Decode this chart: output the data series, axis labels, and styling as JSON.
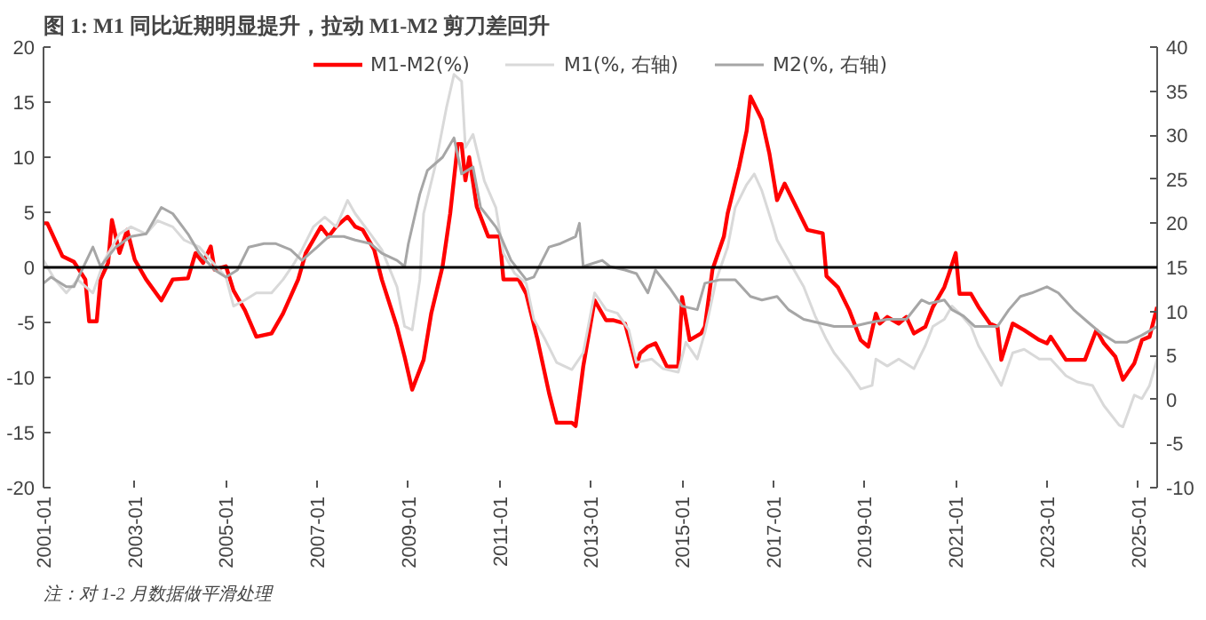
{
  "chart_data": {
    "type": "line",
    "title": "图 1: M1 同比近期明显提升，拉动 M1-M2 剪刀差回升",
    "annotations": [
      "注：对 1-2 月数据做平滑处理"
    ],
    "xlim": [
      "2001-01",
      "2025-06"
    ],
    "xticks": [
      "2001-01",
      "2003-01",
      "2005-01",
      "2007-01",
      "2009-01",
      "2011-01",
      "2013-01",
      "2015-01",
      "2017-01",
      "2019-01",
      "2021-01",
      "2023-01",
      "2025-01"
    ],
    "ylim": [
      -20,
      20
    ],
    "yticks": [
      -20,
      -15,
      -10,
      -5,
      0,
      5,
      10,
      15,
      20
    ],
    "y2lim": [
      -10,
      40
    ],
    "y2ticks": [
      -10,
      -5,
      0,
      5,
      10,
      15,
      20,
      25,
      30,
      35,
      40
    ],
    "ref_lines": [
      {
        "axis": "y",
        "value": 0,
        "color": "#000000"
      }
    ],
    "grid": false,
    "legend": "top",
    "marker": "none",
    "line_style": "solid",
    "series": [
      {
        "name": "M1-M2(%)",
        "color": "#ff0000",
        "x": [
          "2001-01",
          "2001-02",
          "2001-06",
          "2001-09",
          "2001-12",
          "2002-01",
          "2002-03",
          "2002-04",
          "2002-06",
          "2002-07",
          "2002-09",
          "2002-11",
          "2003-01",
          "2003-04",
          "2003-08",
          "2003-11",
          "2004-03",
          "2004-05",
          "2004-07",
          "2004-09",
          "2004-10",
          "2005-01",
          "2005-03",
          "2005-06",
          "2005-09",
          "2006-01",
          "2006-04",
          "2006-08",
          "2006-10",
          "2007-02",
          "2007-04",
          "2007-06",
          "2007-09",
          "2007-11",
          "2008-01",
          "2008-04",
          "2008-06",
          "2008-10",
          "2008-12",
          "2009-02",
          "2009-05",
          "2009-07",
          "2009-10",
          "2009-12",
          "2010-02",
          "2010-03",
          "2010-04",
          "2010-05",
          "2010-07",
          "2010-10",
          "2011-01",
          "2011-02",
          "2011-06",
          "2011-08",
          "2011-11",
          "2012-02",
          "2012-04",
          "2012-08",
          "2012-09",
          "2012-11",
          "2013-02",
          "2013-05",
          "2013-07",
          "2013-10",
          "2014-01",
          "2014-02",
          "2014-04",
          "2014-06",
          "2014-09",
          "2014-12",
          "2015-01",
          "2015-03",
          "2015-06",
          "2015-07",
          "2015-09",
          "2015-12",
          "2016-01",
          "2016-04",
          "2016-06",
          "2016-07",
          "2016-10",
          "2016-12",
          "2017-02",
          "2017-04",
          "2017-07",
          "2017-10",
          "2018-02",
          "2018-03",
          "2018-06",
          "2018-09",
          "2018-12",
          "2019-02",
          "2019-04",
          "2019-05",
          "2019-07",
          "2019-10",
          "2019-12",
          "2020-02",
          "2020-05",
          "2020-07",
          "2020-10",
          "2020-11",
          "2021-01",
          "2021-02",
          "2021-05",
          "2021-07",
          "2021-10",
          "2021-12",
          "2022-01",
          "2022-04",
          "2022-07",
          "2022-11",
          "2023-01",
          "2023-02",
          "2023-06",
          "2023-11",
          "2024-02",
          "2024-04",
          "2024-07",
          "2024-09",
          "2024-12",
          "2025-02",
          "2025-04",
          "2025-06"
        ],
        "values": [
          4.0,
          4.0,
          1.0,
          0.5,
          -1.1,
          -4.9,
          -4.9,
          -1.1,
          0.4,
          4.3,
          1.3,
          3.4,
          0.7,
          -1.1,
          -3.0,
          -1.1,
          -1.0,
          1.3,
          0.4,
          1.9,
          -0.2,
          0.1,
          -2.1,
          -3.9,
          -6.3,
          -6.0,
          -4.2,
          -1.1,
          1.3,
          3.7,
          2.8,
          3.7,
          4.6,
          3.7,
          3.4,
          1.6,
          -1.1,
          -5.4,
          -8.1,
          -11.1,
          -8.4,
          -4.2,
          0.1,
          4.9,
          11.2,
          11.2,
          7.9,
          10.0,
          5.5,
          2.8,
          2.8,
          -1.1,
          -1.1,
          -2.4,
          -6.6,
          -11.4,
          -14.1,
          -14.1,
          -14.4,
          -9.0,
          -3.0,
          -4.8,
          -4.8,
          -5.1,
          -9.0,
          -7.8,
          -7.2,
          -6.9,
          -9.0,
          -9.0,
          -2.7,
          -6.6,
          -6.0,
          -5.4,
          -0.2,
          2.8,
          4.9,
          9.1,
          12.4,
          15.5,
          13.4,
          10.3,
          6.1,
          7.6,
          5.5,
          3.4,
          3.1,
          -0.8,
          -1.8,
          -3.9,
          -6.6,
          -7.2,
          -4.2,
          -5.1,
          -4.5,
          -5.1,
          -4.5,
          -6.0,
          -5.4,
          -3.6,
          -1.8,
          -0.8,
          1.3,
          -2.4,
          -2.4,
          -3.6,
          -5.1,
          -5.4,
          -8.4,
          -5.1,
          -5.7,
          -6.6,
          -6.9,
          -6.3,
          -8.4,
          -8.4,
          -5.7,
          -6.9,
          -8.1,
          -10.2,
          -8.7,
          -6.6,
          -6.3,
          -3.6
        ]
      },
      {
        "name": "M1(%, 右轴)",
        "color": "#d9d9d9",
        "axis": "y2",
        "x": [
          "2001-01",
          "2001-04",
          "2001-07",
          "2001-10",
          "2002-02",
          "2002-05",
          "2002-09",
          "2002-12",
          "2003-04",
          "2003-07",
          "2003-11",
          "2004-02",
          "2004-06",
          "2004-09",
          "2005-01",
          "2005-03",
          "2005-06",
          "2005-09",
          "2006-01",
          "2006-04",
          "2006-07",
          "2006-09",
          "2006-12",
          "2007-03",
          "2007-06",
          "2007-09",
          "2007-11",
          "2008-03",
          "2008-06",
          "2008-10",
          "2008-12",
          "2009-02",
          "2009-04",
          "2009-05",
          "2009-08",
          "2009-11",
          "2010-01",
          "2010-03",
          "2010-04",
          "2010-06",
          "2010-09",
          "2010-12",
          "2011-02",
          "2011-05",
          "2011-08",
          "2011-10",
          "2012-01",
          "2012-04",
          "2012-08",
          "2012-11",
          "2013-02",
          "2013-05",
          "2013-08",
          "2013-11",
          "2014-01",
          "2014-05",
          "2014-08",
          "2014-12",
          "2015-02",
          "2015-05",
          "2015-07",
          "2015-10",
          "2016-01",
          "2016-03",
          "2016-06",
          "2016-08",
          "2016-10",
          "2017-01",
          "2017-02",
          "2017-05",
          "2017-09",
          "2017-12",
          "2018-03",
          "2018-05",
          "2018-09",
          "2018-12",
          "2019-03",
          "2019-04",
          "2019-07",
          "2019-10",
          "2020-02",
          "2020-05",
          "2020-07",
          "2020-10",
          "2020-12",
          "2021-02",
          "2021-05",
          "2021-07",
          "2021-11",
          "2022-01",
          "2022-04",
          "2022-07",
          "2022-11",
          "2023-02",
          "2023-06",
          "2023-09",
          "2024-01",
          "2024-04",
          "2024-08",
          "2024-09",
          "2024-12",
          "2025-02",
          "2025-04",
          "2025-06"
        ],
        "values": [
          15.8,
          13.6,
          12.1,
          13.6,
          12.1,
          15.8,
          18.8,
          19.6,
          18.8,
          20.3,
          19.6,
          18.1,
          17.3,
          15.8,
          13.9,
          10.6,
          11.3,
          12.1,
          12.1,
          13.6,
          15.5,
          17.0,
          19.6,
          20.7,
          19.6,
          22.6,
          21.1,
          18.8,
          17.0,
          12.8,
          8.3,
          7.9,
          13.6,
          21.1,
          26.4,
          33.1,
          36.9,
          36.1,
          28.6,
          30.1,
          24.8,
          21.8,
          16.6,
          14.3,
          13.2,
          9.1,
          6.8,
          4.2,
          3.4,
          5.3,
          12.1,
          10.2,
          9.8,
          7.9,
          4.2,
          4.6,
          3.5,
          3.1,
          6.5,
          4.6,
          7.6,
          13.6,
          17.3,
          21.8,
          24.4,
          25.6,
          23.7,
          19.6,
          18.1,
          15.8,
          12.8,
          9.5,
          6.8,
          5.3,
          3.1,
          1.2,
          1.6,
          4.6,
          3.8,
          4.6,
          3.5,
          6.1,
          8.3,
          9.1,
          10.6,
          9.8,
          8.3,
          6.1,
          3.1,
          1.6,
          5.3,
          5.7,
          4.6,
          4.6,
          2.7,
          2.0,
          1.6,
          -0.7,
          -2.9,
          -3.1,
          0.5,
          0.1,
          1.6,
          4.6
        ]
      },
      {
        "name": "M2(%, 右轴)",
        "color": "#a6a6a6",
        "axis": "y2",
        "x": [
          "2001-01",
          "2001-03",
          "2001-07",
          "2001-09",
          "2002-02",
          "2002-04",
          "2002-08",
          "2002-12",
          "2003-04",
          "2003-08",
          "2003-11",
          "2004-03",
          "2004-06",
          "2004-10",
          "2005-01",
          "2005-04",
          "2005-07",
          "2005-11",
          "2006-02",
          "2006-06",
          "2006-09",
          "2007-01",
          "2007-04",
          "2007-08",
          "2007-11",
          "2008-03",
          "2008-06",
          "2008-10",
          "2008-12",
          "2009-01",
          "2009-04",
          "2009-06",
          "2009-10",
          "2010-01",
          "2010-03",
          "2010-06",
          "2010-08",
          "2010-12",
          "2011-01",
          "2011-04",
          "2011-08",
          "2011-10",
          "2012-02",
          "2012-05",
          "2012-09",
          "2012-10",
          "2012-11",
          "2013-04",
          "2013-06",
          "2013-10",
          "2014-01",
          "2014-04",
          "2014-06",
          "2014-10",
          "2015-01",
          "2015-05",
          "2015-07",
          "2015-11",
          "2016-03",
          "2016-07",
          "2016-10",
          "2017-02",
          "2017-05",
          "2017-09",
          "2018-01",
          "2018-05",
          "2018-10",
          "2019-02",
          "2019-07",
          "2019-12",
          "2020-04",
          "2020-06",
          "2020-10",
          "2020-12",
          "2021-03",
          "2021-06",
          "2021-09",
          "2021-12",
          "2022-03",
          "2022-06",
          "2022-09",
          "2023-01",
          "2023-04",
          "2023-08",
          "2023-12",
          "2024-03",
          "2024-07",
          "2024-10",
          "2025-02",
          "2025-06"
        ],
        "values": [
          13.2,
          13.9,
          12.8,
          12.8,
          17.3,
          15.1,
          17.3,
          18.5,
          18.8,
          21.8,
          21.1,
          18.8,
          16.6,
          14.7,
          13.9,
          14.7,
          17.3,
          17.7,
          17.7,
          17.0,
          15.8,
          17.3,
          18.5,
          18.5,
          18.1,
          17.7,
          16.6,
          15.8,
          15.1,
          17.7,
          23.3,
          26.0,
          27.5,
          29.7,
          25.6,
          26.4,
          21.8,
          19.6,
          18.8,
          15.8,
          13.6,
          13.9,
          17.3,
          17.7,
          18.5,
          20.0,
          15.1,
          15.8,
          15.1,
          14.7,
          14.3,
          12.1,
          14.7,
          12.5,
          10.6,
          10.2,
          13.2,
          13.6,
          13.6,
          11.7,
          11.3,
          11.7,
          10.2,
          9.1,
          8.7,
          8.3,
          8.3,
          8.7,
          9.1,
          9.1,
          11.3,
          10.9,
          11.3,
          10.2,
          9.5,
          8.3,
          8.3,
          8.3,
          10.2,
          11.7,
          12.1,
          12.8,
          12.1,
          10.2,
          8.7,
          7.6,
          6.5,
          6.5,
          7.3,
          8.3
        ]
      }
    ]
  }
}
